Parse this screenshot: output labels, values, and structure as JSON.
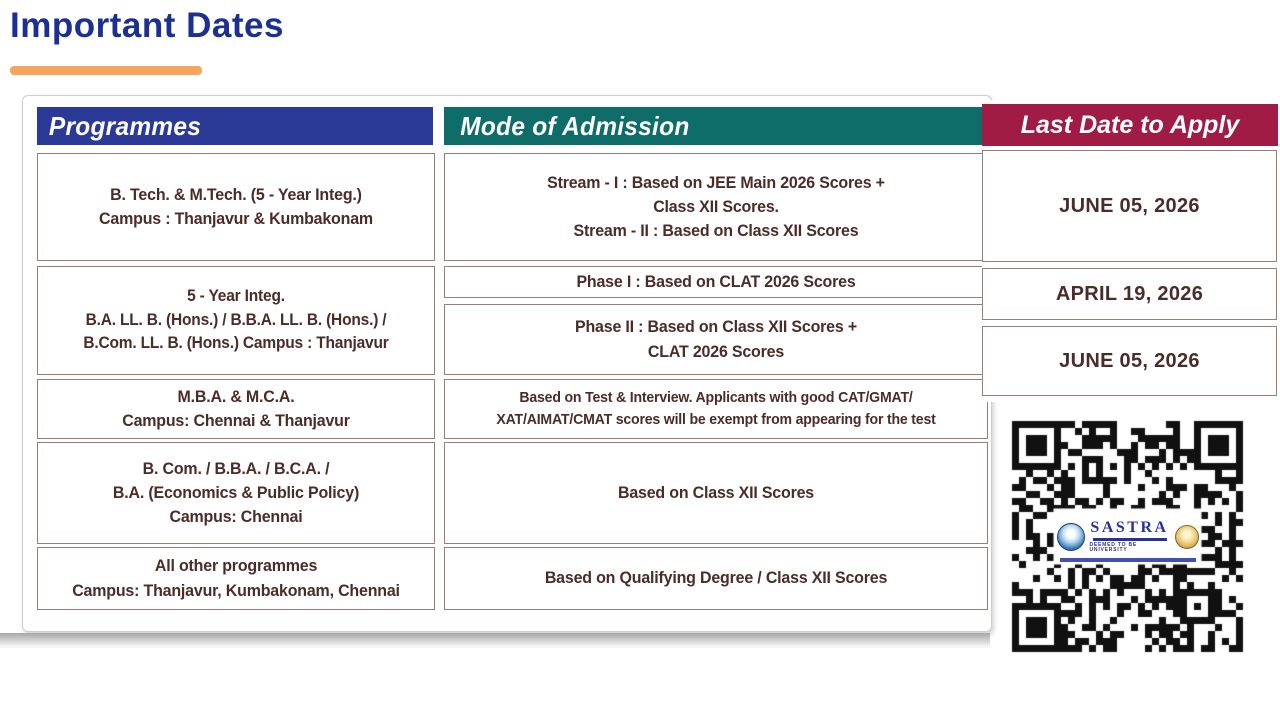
{
  "page": {
    "title": "Important Dates"
  },
  "colors": {
    "title_blue": "#1C2F93",
    "accent_orange": "#F7A45D",
    "programmes_header_bg": "#2B3A96",
    "mode_header_bg": "#0E6C69",
    "last_date_header_bg": "#A11C45",
    "cell_text": "#4A2C29",
    "cell_border": "#9B7C7C"
  },
  "table": {
    "header_programmes": "Programmes",
    "header_mode": "Mode of Admission",
    "rows": [
      {
        "programme_lines": [
          "B. Tech. &  M.Tech. (5 - Year Integ.)",
          "Campus : Thanjavur & Kumbakonam"
        ],
        "mode_lines": [
          "Stream - I  :  Based on JEE Main 2026 Scores +",
          "Class XII Scores.",
          "Stream - II :  Based on Class XII Scores"
        ]
      },
      {
        "programme_lines": [
          "5 - Year Integ.",
          "B.A. LL. B. (Hons.) / B.B.A. LL. B. (Hons.) /",
          "B.Com. LL. B. (Hons.) Campus : Thanjavur"
        ],
        "mode_phase1": "Phase I : Based on CLAT 2026 Scores",
        "mode_phase2_lines": [
          "Phase II  :  Based on Class XII Scores +",
          "CLAT 2026 Scores"
        ]
      },
      {
        "programme_lines": [
          "M.B.A. & M.C.A.",
          "Campus: Chennai & Thanjavur"
        ],
        "mode_lines": [
          "Based on Test & Interview. Applicants with good CAT/GMAT/",
          "XAT/AIMAT/CMAT scores will be exempt from appearing for the test"
        ]
      },
      {
        "programme_lines": [
          "B. Com. / B.B.A. / B.C.A. /",
          "B.A. (Economics & Public Policy)",
          "Campus: Chennai"
        ],
        "mode_lines": [
          "Based on Class XII Scores"
        ]
      },
      {
        "programme_lines": [
          "All other programmes",
          "Campus: Thanjavur, Kumbakonam, Chennai"
        ],
        "mode_lines": [
          "Based on Qualifying Degree / Class XII Scores"
        ]
      }
    ]
  },
  "last_date_panel": {
    "header": "Last Date to Apply",
    "dates": [
      "JUNE 05, 2026",
      "APRIL 19, 2026",
      "JUNE 05, 2026"
    ]
  },
  "qr": {
    "logo_title": "SASTRA",
    "logo_subtitle": "DEEMED TO BE UNIVERSITY"
  }
}
